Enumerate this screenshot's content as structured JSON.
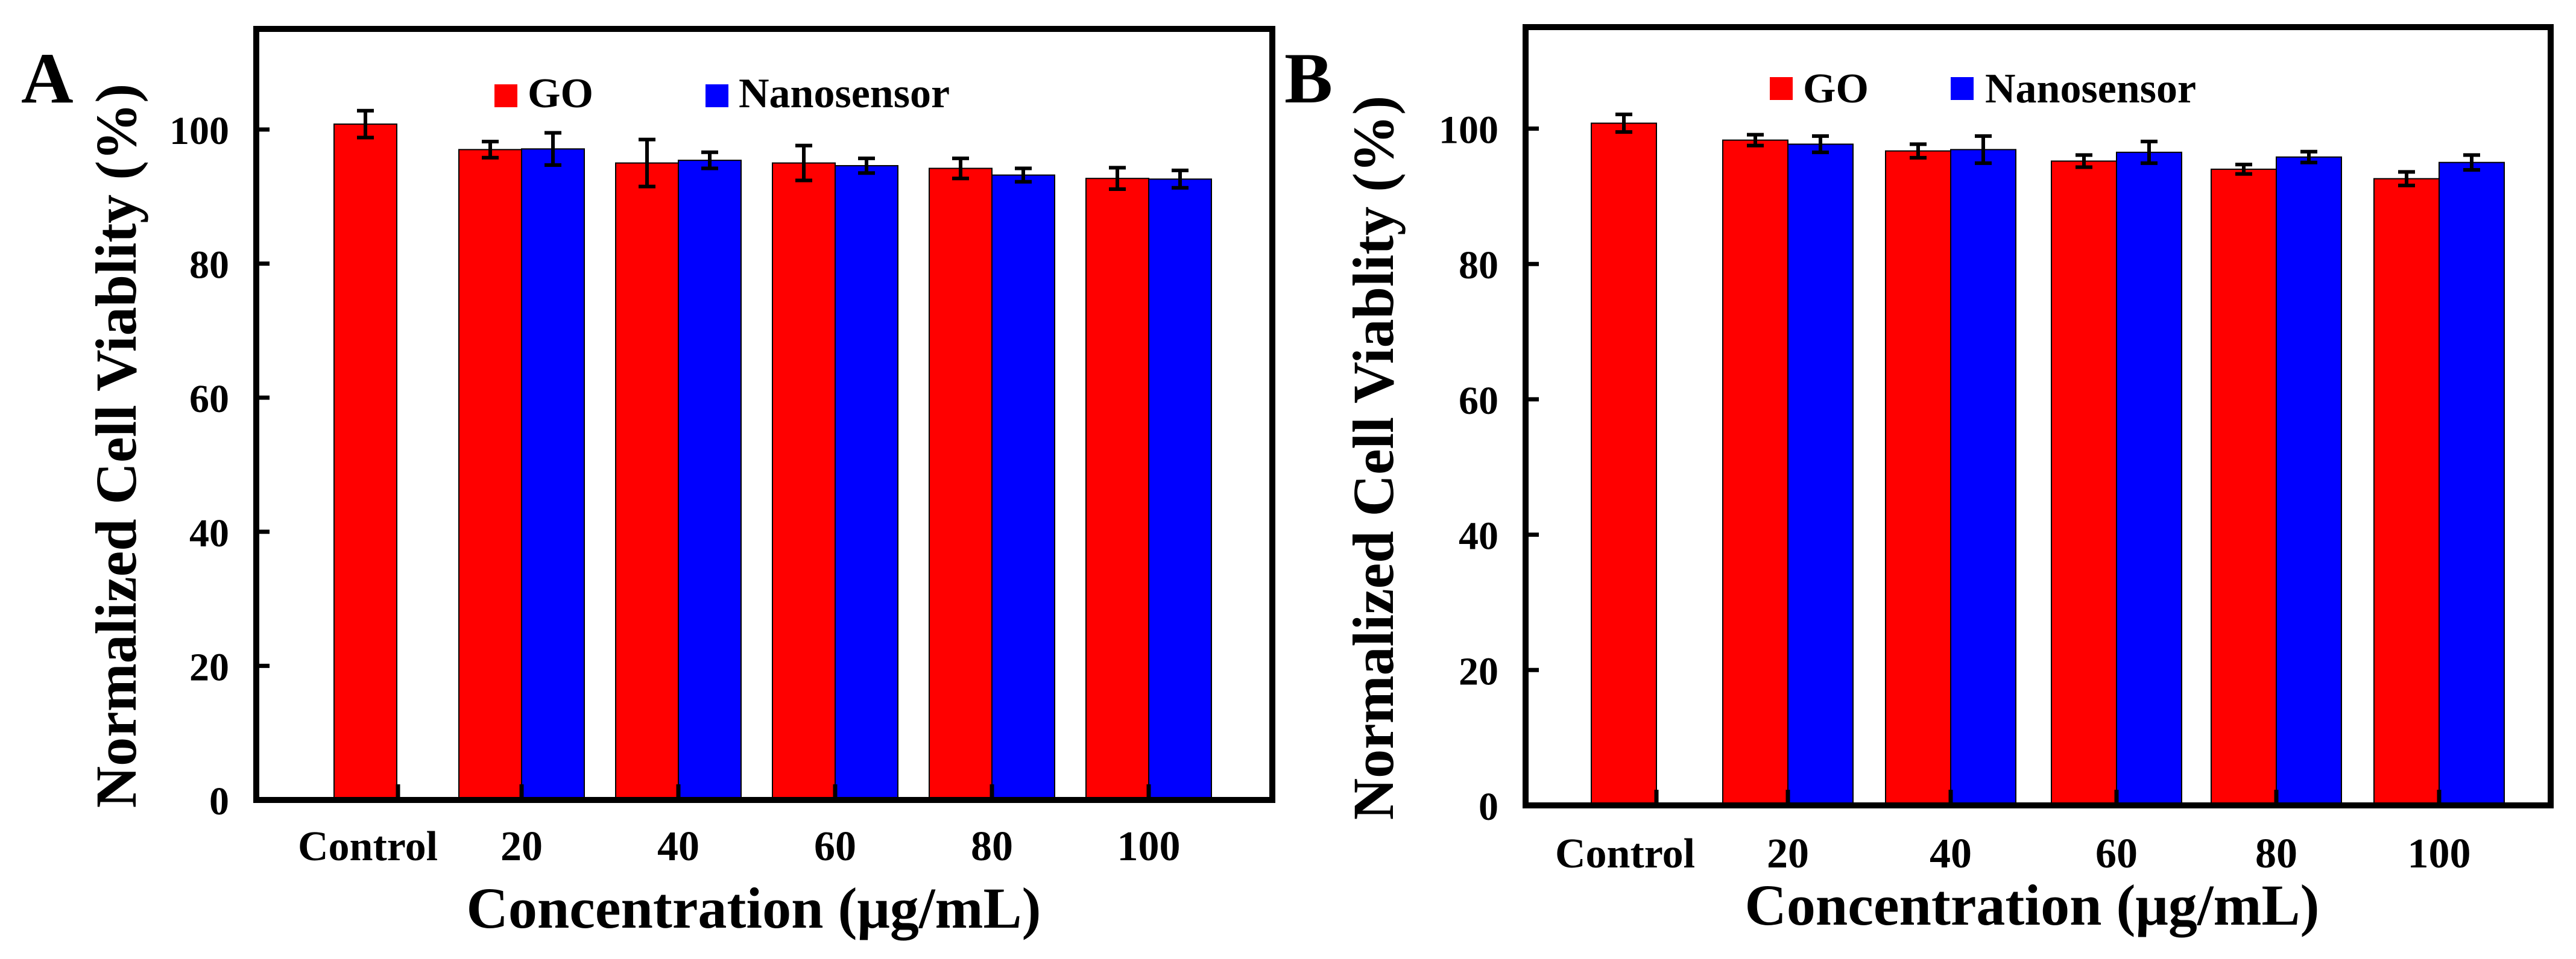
{
  "colors": {
    "go": "#ff0000",
    "nanosensor": "#0000ff",
    "axis": "#000000"
  },
  "chart_data": [
    {
      "panel_label": "A",
      "type": "bar",
      "xlabel": "Concentration (μg/mL)",
      "ylabel": "Normalized Cell Viablity (%)",
      "ylim": [
        0,
        115
      ],
      "yticks": [
        0,
        20,
        40,
        60,
        80,
        100
      ],
      "categories": [
        "Control",
        "20",
        "40",
        "60",
        "80",
        "100"
      ],
      "legend": {
        "placement": "top-center",
        "entries": [
          "GO",
          "Nanosensor"
        ]
      },
      "series": [
        {
          "name": "GO",
          "color": "#ff0000",
          "values": [
            100.8,
            97.0,
            95.0,
            95.0,
            94.2,
            92.7
          ],
          "errors": [
            2.0,
            1.2,
            3.5,
            2.6,
            1.5,
            1.6
          ]
        },
        {
          "name": "Nanosensor",
          "color": "#0000ff",
          "values": [
            null,
            97.1,
            95.4,
            94.6,
            93.2,
            92.6
          ],
          "errors": [
            null,
            2.4,
            1.2,
            1.1,
            1.0,
            1.3
          ]
        }
      ]
    },
    {
      "panel_label": "B",
      "type": "bar",
      "xlabel": "Concentration (μg/mL)",
      "ylabel": "Normalized Cell Viablity (%)",
      "ylim": [
        0,
        115
      ],
      "yticks": [
        0,
        20,
        40,
        60,
        80,
        100
      ],
      "categories": [
        "Control",
        "20",
        "40",
        "60",
        "80",
        "100"
      ],
      "legend": {
        "placement": "top-center",
        "entries": [
          "GO",
          "Nanosensor"
        ]
      },
      "series": [
        {
          "name": "GO",
          "color": "#ff0000",
          "values": [
            100.8,
            98.3,
            96.7,
            95.2,
            94.0,
            92.6
          ],
          "errors": [
            1.3,
            0.8,
            1.0,
            0.9,
            0.7,
            1.0
          ]
        },
        {
          "name": "Nanosensor",
          "color": "#0000ff",
          "values": [
            null,
            97.7,
            96.9,
            96.5,
            95.8,
            95.0
          ],
          "errors": [
            null,
            1.2,
            2.0,
            1.6,
            0.8,
            1.1
          ]
        }
      ]
    }
  ]
}
